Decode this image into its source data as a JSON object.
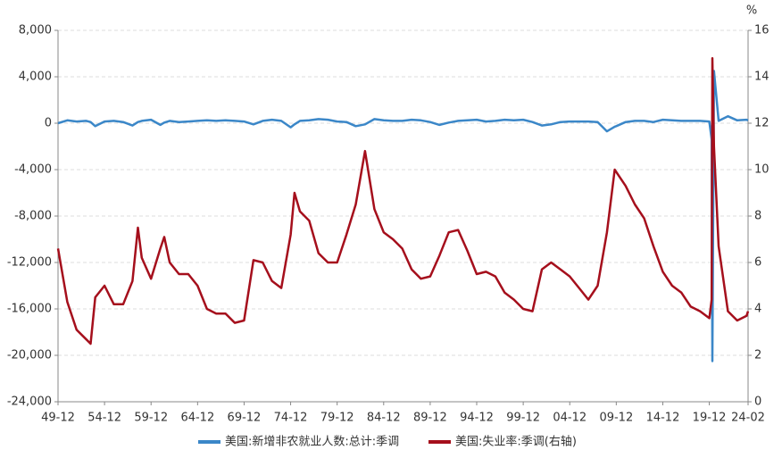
{
  "chart_data": {
    "type": "line",
    "x": [
      "49-12",
      "50-12",
      "51-12",
      "52-12",
      "53-06",
      "53-12",
      "54-12",
      "55-12",
      "56-12",
      "57-12",
      "58-07",
      "58-12",
      "59-12",
      "60-12",
      "61-05",
      "61-12",
      "62-12",
      "63-12",
      "64-12",
      "65-12",
      "66-12",
      "67-12",
      "68-12",
      "69-12",
      "70-12",
      "71-12",
      "72-12",
      "73-12",
      "74-12",
      "75-05",
      "75-12",
      "76-12",
      "77-12",
      "78-12",
      "79-12",
      "80-12",
      "81-12",
      "82-12",
      "83-12",
      "84-12",
      "85-12",
      "86-12",
      "87-12",
      "88-12",
      "89-12",
      "90-12",
      "91-12",
      "92-12",
      "93-12",
      "94-12",
      "95-12",
      "96-12",
      "97-12",
      "98-12",
      "99-12",
      "00-12",
      "01-12",
      "02-12",
      "03-12",
      "04-12",
      "05-12",
      "06-12",
      "07-12",
      "08-12",
      "09-10",
      "09-12",
      "10-12",
      "11-12",
      "12-12",
      "13-12",
      "14-12",
      "15-12",
      "16-12",
      "17-12",
      "18-12",
      "19-12",
      "20-03",
      "20-04",
      "20-06",
      "20-12",
      "21-12",
      "22-12",
      "23-12",
      "24-02"
    ],
    "xticks": [
      "49-12",
      "54-12",
      "59-12",
      "64-12",
      "69-12",
      "74-12",
      "79-12",
      "84-12",
      "89-12",
      "94-12",
      "99-12",
      "04-12",
      "09-12",
      "14-12",
      "19-12",
      "24-02"
    ],
    "series": [
      {
        "name": "美国:新增非农就业人数:总计:季调",
        "color": "#3b87c8",
        "values": [
          0,
          250,
          150,
          200,
          100,
          -250,
          150,
          200,
          100,
          -200,
          100,
          200,
          300,
          -150,
          50,
          200,
          100,
          150,
          200,
          250,
          200,
          250,
          200,
          150,
          -100,
          200,
          300,
          200,
          -350,
          -100,
          200,
          250,
          350,
          300,
          150,
          100,
          -250,
          -100,
          350,
          250,
          200,
          200,
          300,
          250,
          100,
          -150,
          50,
          200,
          250,
          300,
          150,
          200,
          300,
          250,
          300,
          100,
          -200,
          -100,
          100,
          150,
          150,
          150,
          100,
          -700,
          -300,
          -250,
          100,
          200,
          200,
          100,
          300,
          250,
          200,
          200,
          200,
          150,
          -1400,
          -20500,
          4500,
          200,
          600,
          250,
          300,
          250
        ]
      },
      {
        "name": "美国:失业率:季调(右轴)",
        "color": "#a50f1c",
        "axis": "y2",
        "values": [
          6.6,
          4.3,
          3.1,
          2.7,
          2.5,
          4.5,
          5.0,
          4.2,
          4.2,
          5.2,
          7.5,
          6.2,
          5.3,
          6.6,
          7.1,
          6.0,
          5.5,
          5.5,
          5.0,
          4.0,
          3.8,
          3.8,
          3.4,
          3.5,
          6.1,
          6.0,
          5.2,
          4.9,
          7.2,
          9.0,
          8.2,
          7.8,
          6.4,
          6.0,
          6.0,
          7.2,
          8.5,
          10.8,
          8.3,
          7.3,
          7.0,
          6.6,
          5.7,
          5.3,
          5.4,
          6.3,
          7.3,
          7.4,
          6.5,
          5.5,
          5.6,
          5.4,
          4.7,
          4.4,
          4.0,
          3.9,
          5.7,
          6.0,
          5.7,
          5.4,
          4.9,
          4.4,
          5.0,
          7.3,
          10.0,
          9.9,
          9.3,
          8.5,
          7.9,
          6.7,
          5.6,
          5.0,
          4.7,
          4.1,
          3.9,
          3.6,
          4.4,
          14.8,
          11.0,
          6.7,
          3.9,
          3.5,
          3.7,
          3.9
        ]
      }
    ],
    "ylim": [
      -24000,
      8000
    ],
    "yticks": [
      {
        "value": -24000,
        "label": "-24,000"
      },
      {
        "value": -20000,
        "label": "-20,000"
      },
      {
        "value": -16000,
        "label": "-16,000"
      },
      {
        "value": -12000,
        "label": "-12,000"
      },
      {
        "value": -8000,
        "label": "-8,000"
      },
      {
        "value": -4000,
        "label": "-4,000"
      },
      0,
      {
        "value": 4000,
        "label": "4,000"
      },
      {
        "value": 8000,
        "label": "8,000"
      }
    ],
    "y2lim": [
      0,
      16
    ],
    "y2ticks": [
      0,
      2,
      4,
      6,
      8,
      10,
      12,
      14,
      16
    ],
    "y2_unit": "%",
    "grid": true,
    "legend": "bottom"
  }
}
